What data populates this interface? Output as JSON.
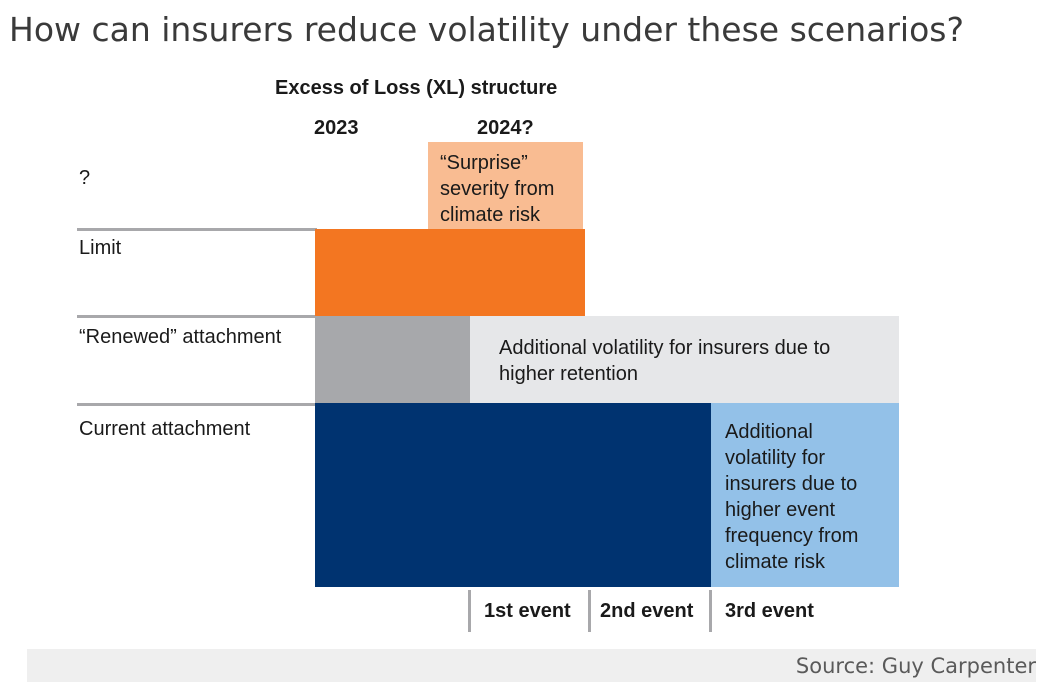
{
  "title": "How can insurers reduce volatility under these scenarios?",
  "diagram": {
    "heading": "Excess of Loss (XL) structure",
    "years": [
      "2023",
      "2024?"
    ],
    "row_labels": {
      "unknown": "?",
      "limit": "Limit",
      "renewed": "“Renewed” attachment",
      "current": "Current attachment"
    },
    "blocks": {
      "surprise": [
        "“Surprise”",
        "severity from",
        "climate risk"
      ],
      "retention": [
        "Additional volatility for insurers due to",
        "higher retention"
      ],
      "frequency": [
        "Additional",
        "volatility for",
        "insurers due to",
        "higher event",
        "frequency from",
        "climate risk"
      ]
    },
    "events": [
      "1st event",
      "2nd event",
      "3rd event"
    ],
    "colors": {
      "surprise": "#f9bc92",
      "limit": "#f37621",
      "renewed_gray": "#a7a8ab",
      "retention_band": "#e6e7e9",
      "current_navy": "#003370",
      "frequency_blue": "#93c1e8",
      "divider": "#a8a8ab"
    }
  },
  "footer": {
    "source": "Source: Guy Carpenter"
  }
}
